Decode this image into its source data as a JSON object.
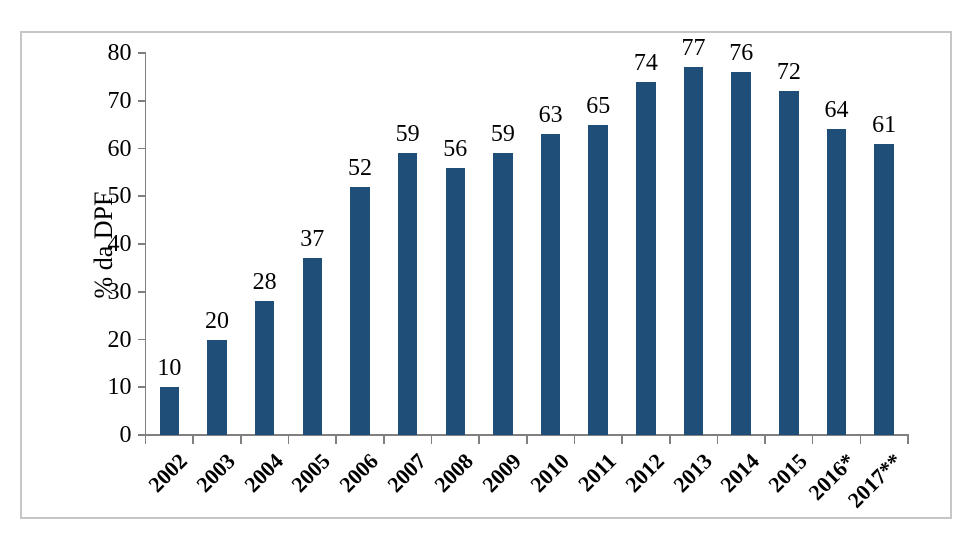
{
  "chart_data": {
    "type": "bar",
    "categories": [
      "2002",
      "2003",
      "2004",
      "2005",
      "2006",
      "2007",
      "2008",
      "2009",
      "2010",
      "2011",
      "2012",
      "2013",
      "2014",
      "2015",
      "2016*",
      "2017**"
    ],
    "values": [
      10,
      20,
      28,
      37,
      52,
      59,
      56,
      59,
      63,
      65,
      74,
      77,
      76,
      72,
      64,
      61
    ],
    "data_labels": [
      "10",
      "20",
      "28",
      "37",
      "52",
      "59",
      "56",
      "59",
      "63",
      "65",
      "74",
      "77",
      "76",
      "72",
      "64",
      "61"
    ],
    "title": "",
    "xlabel": "",
    "ylabel": "% da DPF",
    "ylim": [
      0,
      80
    ],
    "yticks": [
      0,
      10,
      20,
      30,
      40,
      50,
      60,
      70,
      80
    ],
    "grid": false,
    "legend": "none",
    "data_labels_shown": true,
    "bar_color": "#1f4e79",
    "axis_color": "#808080",
    "frame_color": "#c6c6c6",
    "text_color": "#000000",
    "background_color": "#ffffff"
  }
}
